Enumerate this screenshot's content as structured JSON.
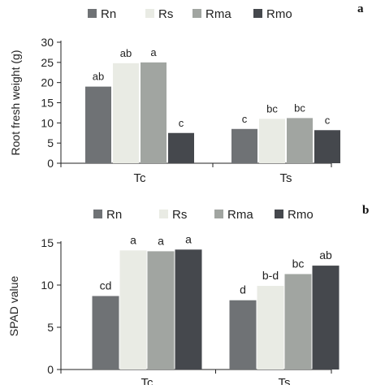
{
  "colors": {
    "Rn": "#6f7275",
    "Rs": "#e9ebe4",
    "Rma": "#a1a5a1",
    "Rmo": "#45484d",
    "axis": "#222222",
    "text": "#222222"
  },
  "chart_data": [
    {
      "type": "bar",
      "panel_label": "a",
      "categories": [
        "Tc",
        "Ts"
      ],
      "series": [
        {
          "name": "Rn",
          "values": [
            19,
            8.5
          ],
          "labels": [
            "ab",
            "c"
          ]
        },
        {
          "name": "Rs",
          "values": [
            24.8,
            11
          ],
          "labels": [
            "ab",
            "bc"
          ]
        },
        {
          "name": "Rma",
          "values": [
            25,
            11.2
          ],
          "labels": [
            "a",
            "bc"
          ]
        },
        {
          "name": "Rmo",
          "values": [
            7.5,
            8.2
          ],
          "labels": [
            "c",
            "c"
          ]
        }
      ],
      "ylabel": "Root fresh weight (g)",
      "ylim": [
        0,
        30
      ],
      "yticks": [
        "0",
        "5",
        "10",
        "15",
        "20",
        "25",
        "30"
      ],
      "legend_position": "top",
      "grid": false
    },
    {
      "type": "bar",
      "panel_label": "b",
      "categories": [
        "Tc",
        "Ts"
      ],
      "series": [
        {
          "name": "Rn",
          "values": [
            8.7,
            8.2
          ],
          "labels": [
            "cd",
            "d"
          ]
        },
        {
          "name": "Rs",
          "values": [
            14.1,
            9.9
          ],
          "labels": [
            "a",
            "b-d"
          ]
        },
        {
          "name": "Rma",
          "values": [
            14.0,
            11.3
          ],
          "labels": [
            "a",
            "bc"
          ]
        },
        {
          "name": "Rmo",
          "values": [
            14.2,
            12.3
          ],
          "labels": [
            "a",
            "ab"
          ]
        }
      ],
      "ylabel": "SPAD value",
      "ylim": [
        0,
        15
      ],
      "yticks": [
        "0",
        "5",
        "10",
        "15"
      ],
      "legend_position": "top",
      "grid": false
    }
  ]
}
